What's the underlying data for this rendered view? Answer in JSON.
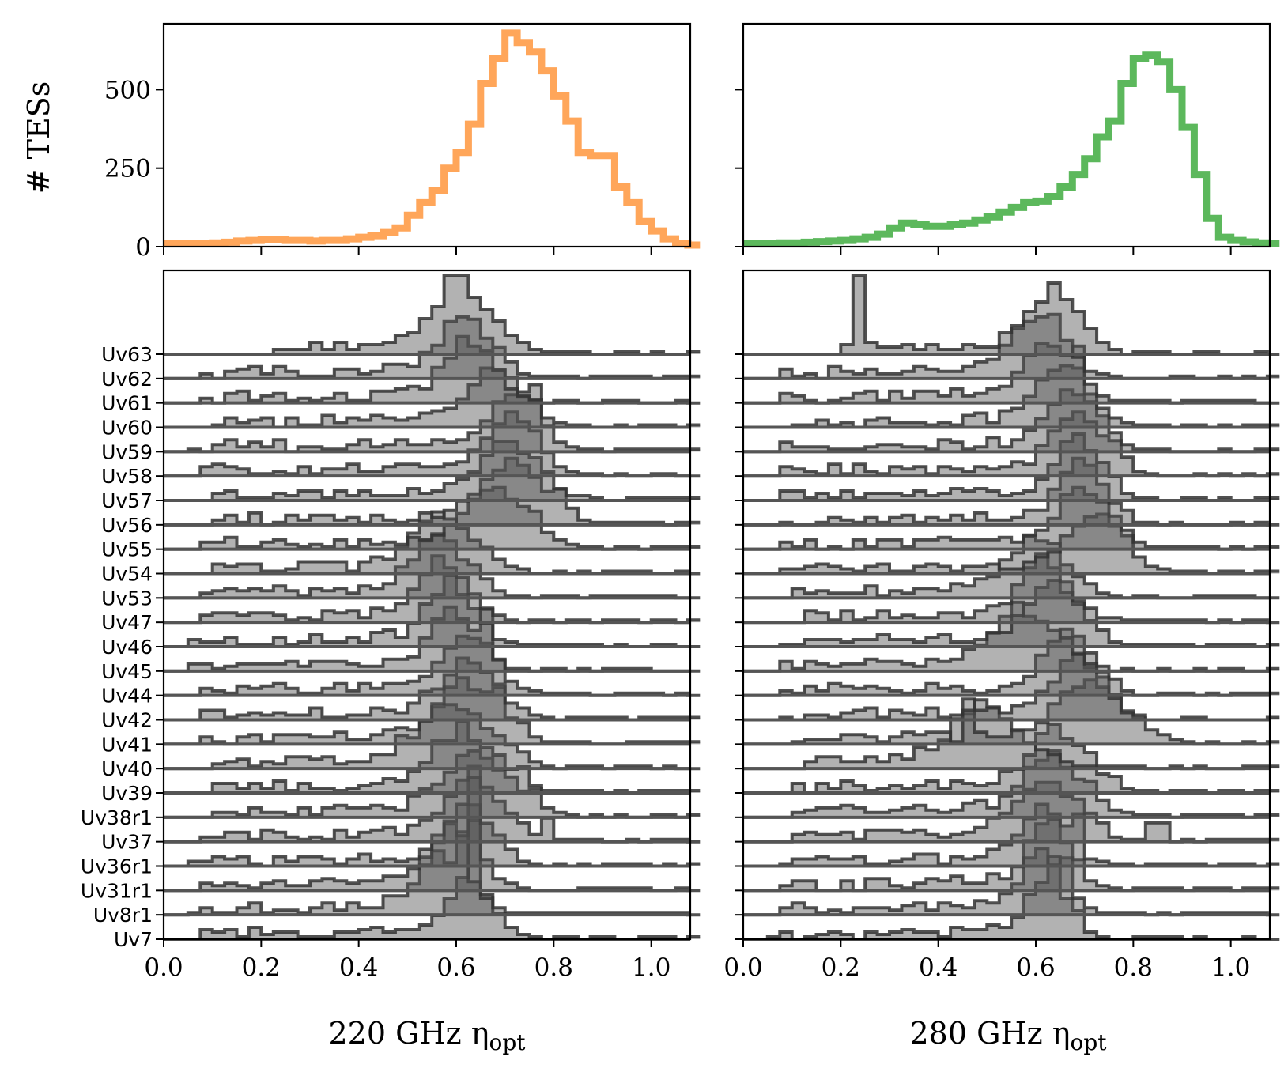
{
  "chart_data": {
    "type": "histogram",
    "bin_edges": [
      0.0,
      0.025,
      0.05,
      0.075,
      0.1,
      0.125,
      0.15,
      0.175,
      0.2,
      0.225,
      0.25,
      0.275,
      0.3,
      0.325,
      0.35,
      0.375,
      0.4,
      0.425,
      0.45,
      0.475,
      0.5,
      0.525,
      0.55,
      0.575,
      0.6,
      0.625,
      0.65,
      0.675,
      0.7,
      0.725,
      0.75,
      0.775,
      0.8,
      0.825,
      0.85,
      0.875,
      0.9,
      0.925,
      0.95,
      0.975,
      1.0,
      1.025,
      1.05,
      1.075,
      1.1
    ],
    "xlim": [
      0.0,
      1.08
    ],
    "xticks": [
      "0.0",
      "0.2",
      "0.4",
      "0.6",
      "0.8",
      "1.0"
    ],
    "summary": {
      "ylabel": "# TESs",
      "ylim": [
        0,
        710
      ],
      "yticks": [
        "0",
        "250",
        "500"
      ],
      "series": [
        {
          "name": "220 GHz",
          "color": "#ffa65a",
          "counts": [
            10,
            10,
            10,
            10,
            12,
            14,
            18,
            20,
            22,
            22,
            20,
            20,
            18,
            20,
            20,
            25,
            30,
            35,
            45,
            60,
            100,
            140,
            180,
            250,
            300,
            390,
            520,
            600,
            680,
            650,
            620,
            560,
            480,
            400,
            300,
            290,
            290,
            190,
            140,
            80,
            50,
            25,
            10,
            5
          ]
        },
        {
          "name": "280 GHz",
          "color": "#5cb85c",
          "counts": [
            10,
            10,
            10,
            12,
            12,
            14,
            16,
            18,
            20,
            25,
            30,
            40,
            60,
            75,
            70,
            65,
            65,
            70,
            75,
            85,
            95,
            110,
            125,
            140,
            145,
            160,
            190,
            230,
            280,
            350,
            400,
            520,
            600,
            610,
            590,
            500,
            380,
            230,
            90,
            30,
            20,
            15,
            12,
            10
          ]
        }
      ]
    },
    "rows": [
      "Uv63",
      "Uv62",
      "Uv61",
      "Uv60",
      "Uv59",
      "Uv58",
      "Uv57",
      "Uv56",
      "Uv55",
      "Uv54",
      "Uv53",
      "Uv47",
      "Uv46",
      "Uv45",
      "Uv44",
      "Uv42",
      "Uv41",
      "Uv40",
      "Uv39",
      "Uv38r1",
      "Uv37",
      "Uv36r1",
      "Uv31r1",
      "Uv8r1",
      "Uv7"
    ],
    "ridge": {
      "220": [
        {
          "label": "Uv7",
          "peak": 0.63,
          "width": 0.045,
          "floor": 0.08,
          "spike": 0.63,
          "spike_h": 5.0
        },
        {
          "label": "Uv8r1",
          "peak": 0.58,
          "width": 0.05,
          "floor": 0.06,
          "spike": 0.62,
          "spike_h": 3.5
        },
        {
          "label": "Uv31r1",
          "peak": 0.6,
          "width": 0.05,
          "floor": 0.07,
          "spike": 0.64,
          "spike_h": 3.6
        },
        {
          "label": "Uv36r1",
          "peak": 0.63,
          "width": 0.045,
          "floor": 0.06,
          "spike": 0.64,
          "spike_h": 4.2
        },
        {
          "label": "Uv37",
          "peak": 0.64,
          "width": 0.06,
          "floor": 0.08,
          "spike": 0.78,
          "spike_h": 1.0
        },
        {
          "label": "Uv38r1",
          "peak": 0.65,
          "width": 0.07,
          "floor": 0.1,
          "spike": 0.76,
          "spike_h": 1.2
        },
        {
          "label": "Uv39",
          "peak": 0.62,
          "width": 0.065,
          "floor": 0.09,
          "spike": 0.73,
          "spike_h": 1.1
        },
        {
          "label": "Uv40",
          "peak": 0.6,
          "width": 0.07,
          "floor": 0.1,
          "spike": 0.48,
          "spike_h": 1.4
        },
        {
          "label": "Uv41",
          "peak": 0.63,
          "width": 0.06,
          "floor": 0.08,
          "spike": 0.68,
          "spike_h": 2.4
        },
        {
          "label": "Uv42",
          "peak": 0.63,
          "width": 0.055,
          "floor": 0.08,
          "spike": 0.6,
          "spike_h": 1.6
        },
        {
          "label": "Uv44",
          "peak": 0.63,
          "width": 0.05,
          "floor": 0.07,
          "spike": 0.68,
          "spike_h": 1.5
        },
        {
          "label": "Uv45",
          "peak": 0.6,
          "width": 0.045,
          "floor": 0.06,
          "spike": 0.67,
          "spike_h": 2.6
        },
        {
          "label": "Uv46",
          "peak": 0.59,
          "width": 0.045,
          "floor": 0.06,
          "spike": 0.57,
          "spike_h": 1.5
        },
        {
          "label": "Uv47",
          "peak": 0.58,
          "width": 0.05,
          "floor": 0.07,
          "spike": 0.51,
          "spike_h": 1.3
        },
        {
          "label": "Uv53",
          "peak": 0.57,
          "width": 0.055,
          "floor": 0.08,
          "spike": 0.63,
          "spike_h": 1.2
        },
        {
          "label": "Uv54",
          "peak": 0.58,
          "width": 0.06,
          "floor": 0.09,
          "spike": 0.66,
          "spike_h": 1.1
        },
        {
          "label": "Uv55",
          "peak": 0.69,
          "width": 0.06,
          "floor": 0.08,
          "spike": 0.75,
          "spike_h": 1.6
        },
        {
          "label": "Uv56",
          "peak": 0.72,
          "width": 0.06,
          "floor": 0.09,
          "spike": 0.81,
          "spike_h": 1.5
        },
        {
          "label": "Uv57",
          "peak": 0.71,
          "width": 0.055,
          "floor": 0.08,
          "spike": 0.73,
          "spike_h": 2.0
        },
        {
          "label": "Uv58",
          "peak": 0.72,
          "width": 0.05,
          "floor": 0.07,
          "spike": 0.77,
          "spike_h": 1.4
        },
        {
          "label": "Uv59",
          "peak": 0.73,
          "width": 0.045,
          "floor": 0.06,
          "spike": 0.75,
          "spike_h": 2.2
        },
        {
          "label": "Uv60",
          "peak": 0.68,
          "width": 0.05,
          "floor": 0.07,
          "spike": 0.76,
          "spike_h": 1.8
        },
        {
          "label": "Uv61",
          "peak": 0.63,
          "width": 0.05,
          "floor": 0.07,
          "spike": 0.69,
          "spike_h": 1.4
        },
        {
          "label": "Uv62",
          "peak": 0.62,
          "width": 0.05,
          "floor": 0.08,
          "spike": 0.64,
          "spike_h": 2.5
        },
        {
          "label": "Uv63",
          "peak": 0.62,
          "width": 0.06,
          "floor": 0.22,
          "spike": 0.6,
          "spike_h": 3.3
        }
      ],
      "280": [
        {
          "label": "Uv7",
          "peak": 0.63,
          "width": 0.04,
          "floor": 0.06,
          "spike": 0.64,
          "spike_h": 3.5
        },
        {
          "label": "Uv8r1",
          "peak": 0.62,
          "width": 0.045,
          "floor": 0.07,
          "spike": 0.66,
          "spike_h": 2.4
        },
        {
          "label": "Uv31r1",
          "peak": 0.63,
          "width": 0.045,
          "floor": 0.07,
          "spike": 0.64,
          "spike_h": 3.0
        },
        {
          "label": "Uv36r1",
          "peak": 0.62,
          "width": 0.045,
          "floor": 0.07,
          "spike": 0.68,
          "spike_h": 2.2
        },
        {
          "label": "Uv37",
          "peak": 0.63,
          "width": 0.06,
          "floor": 0.1,
          "spike": 0.85,
          "spike_h": 0.8
        },
        {
          "label": "Uv38r1",
          "peak": 0.64,
          "width": 0.06,
          "floor": 0.09,
          "spike": 0.7,
          "spike_h": 1.5
        },
        {
          "label": "Uv39",
          "peak": 0.65,
          "width": 0.06,
          "floor": 0.1,
          "spike": 0.72,
          "spike_h": 1.6
        },
        {
          "label": "Uv40",
          "peak": 0.5,
          "width": 0.07,
          "floor": 0.12,
          "spike": 0.57,
          "spike_h": 1.6
        },
        {
          "label": "Uv41",
          "peak": 0.72,
          "width": 0.07,
          "floor": 0.11,
          "spike": 0.46,
          "spike_h": 1.9
        },
        {
          "label": "Uv42",
          "peak": 0.69,
          "width": 0.05,
          "floor": 0.07,
          "spike": 0.72,
          "spike_h": 1.6
        },
        {
          "label": "Uv44",
          "peak": 0.67,
          "width": 0.05,
          "floor": 0.07,
          "spike": 0.7,
          "spike_h": 1.8
        },
        {
          "label": "Uv45",
          "peak": 0.58,
          "width": 0.06,
          "floor": 0.08,
          "spike": 0.67,
          "spike_h": 1.4
        },
        {
          "label": "Uv46",
          "peak": 0.64,
          "width": 0.05,
          "floor": 0.07,
          "spike": 0.64,
          "spike_h": 2.4
        },
        {
          "label": "Uv47",
          "peak": 0.62,
          "width": 0.05,
          "floor": 0.08,
          "spike": 0.62,
          "spike_h": 2.0
        },
        {
          "label": "Uv53",
          "peak": 0.61,
          "width": 0.055,
          "floor": 0.09,
          "spike": 0.58,
          "spike_h": 1.7
        },
        {
          "label": "Uv54",
          "peak": 0.73,
          "width": 0.05,
          "floor": 0.08,
          "spike": 0.79,
          "spike_h": 1.6
        },
        {
          "label": "Uv55",
          "peak": 0.7,
          "width": 0.05,
          "floor": 0.07,
          "spike": 0.73,
          "spike_h": 2.0
        },
        {
          "label": "Uv56",
          "peak": 0.7,
          "width": 0.045,
          "floor": 0.07,
          "spike": 0.71,
          "spike_h": 2.2
        },
        {
          "label": "Uv57",
          "peak": 0.69,
          "width": 0.045,
          "floor": 0.08,
          "spike": 0.73,
          "spike_h": 1.6
        },
        {
          "label": "Uv58",
          "peak": 0.69,
          "width": 0.05,
          "floor": 0.08,
          "spike": 0.76,
          "spike_h": 1.5
        },
        {
          "label": "Uv59",
          "peak": 0.68,
          "width": 0.05,
          "floor": 0.07,
          "spike": 0.7,
          "spike_h": 2.0
        },
        {
          "label": "Uv60",
          "peak": 0.66,
          "width": 0.05,
          "floor": 0.07,
          "spike": 0.68,
          "spike_h": 2.5
        },
        {
          "label": "Uv61",
          "peak": 0.63,
          "width": 0.05,
          "floor": 0.07,
          "spike": 0.68,
          "spike_h": 2.4
        },
        {
          "label": "Uv62",
          "peak": 0.61,
          "width": 0.05,
          "floor": 0.07,
          "spike": 0.63,
          "spike_h": 2.7
        },
        {
          "label": "Uv63",
          "peak": 0.64,
          "width": 0.05,
          "floor": 0.2,
          "spike": 0.24,
          "spike_h": 3.3
        }
      ]
    },
    "panels": [
      {
        "key": "220",
        "xlabel": "220 GHz η",
        "xlabel_sub": "opt"
      },
      {
        "key": "280",
        "xlabel": "280 GHz η",
        "xlabel_sub": "opt"
      }
    ],
    "colors": {
      "ridge_fill": "#555555",
      "ridge_line": "#333333",
      "baseline": "#555555"
    }
  }
}
